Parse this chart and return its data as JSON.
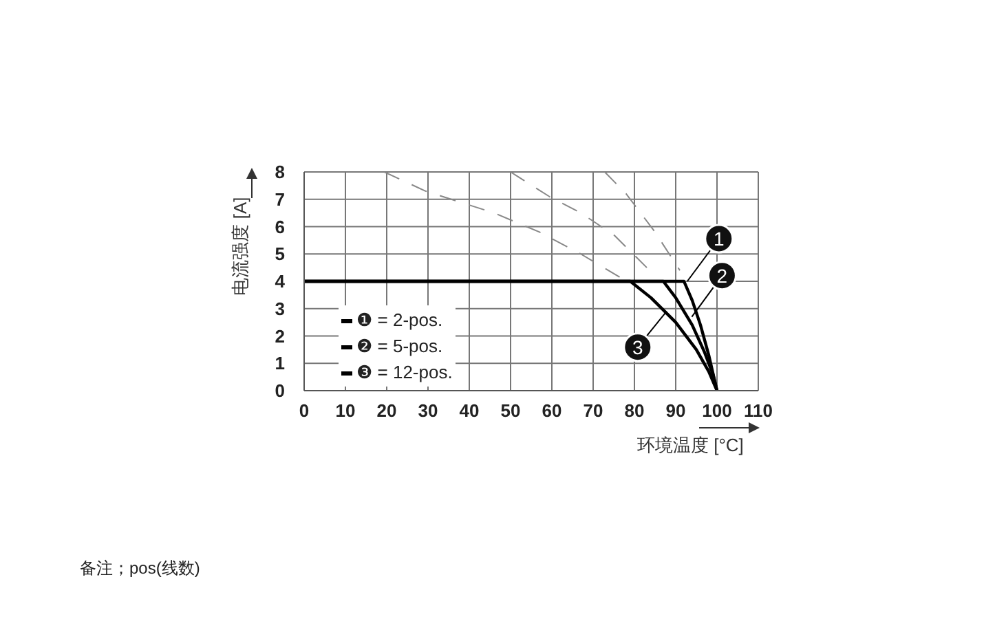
{
  "chart_data": {
    "type": "line",
    "xlabel": "环境温度 [°C]",
    "ylabel": "电流强度 [A]",
    "xlim": [
      0,
      110
    ],
    "xticks": [
      0,
      10,
      20,
      30,
      40,
      50,
      60,
      70,
      80,
      90,
      100,
      110
    ],
    "ylim": [
      0,
      8
    ],
    "yticks": [
      0,
      1,
      2,
      3,
      4,
      5,
      6,
      7,
      8
    ],
    "grid": true,
    "legend": "left",
    "marker": "none",
    "series": [
      {
        "name": "❶ = 2-pos.",
        "color": "#000000",
        "line_style": "solid",
        "x": [
          0,
          92,
          94,
          96,
          98,
          100
        ],
        "values": [
          4,
          4,
          3.3,
          2.4,
          1.3,
          0
        ]
      },
      {
        "name": "❷ = 5-pos.",
        "color": "#000000",
        "line_style": "solid",
        "x": [
          0,
          87,
          90,
          94,
          97,
          99,
          100
        ],
        "values": [
          4,
          4,
          3.4,
          2.4,
          1.4,
          0.6,
          0
        ]
      },
      {
        "name": "❸ = 12-pos.",
        "color": "#000000",
        "line_style": "solid",
        "x": [
          0,
          79,
          84,
          90,
          95,
          98,
          100
        ],
        "values": [
          4,
          4,
          3.4,
          2.5,
          1.5,
          0.7,
          0
        ]
      },
      {
        "color": "#888888",
        "line_style": "dashed",
        "x": [
          19.4,
          29.4,
          46,
          57,
          67,
          77
        ],
        "values": [
          8,
          7.3,
          6.5,
          5.8,
          5,
          4.1
        ]
      },
      {
        "color": "#888888",
        "line_style": "dashed",
        "x": [
          50,
          59.4,
          67,
          75,
          83
        ],
        "values": [
          8,
          7.1,
          6.5,
          5.7,
          4.5
        ]
      },
      {
        "color": "#888888",
        "line_style": "dashed",
        "x": [
          72.8,
          78,
          85,
          91
        ],
        "values": [
          8,
          7.2,
          5.8,
          4.4
        ]
      }
    ],
    "annotations": [
      {
        "text": "1",
        "x": 92.8,
        "y": 4
      },
      {
        "text": "2",
        "x": 93.9,
        "y": 2.7
      },
      {
        "text": "3",
        "x": 87.8,
        "y": 2.9
      },
      "备注；pos(线数)"
    ]
  }
}
